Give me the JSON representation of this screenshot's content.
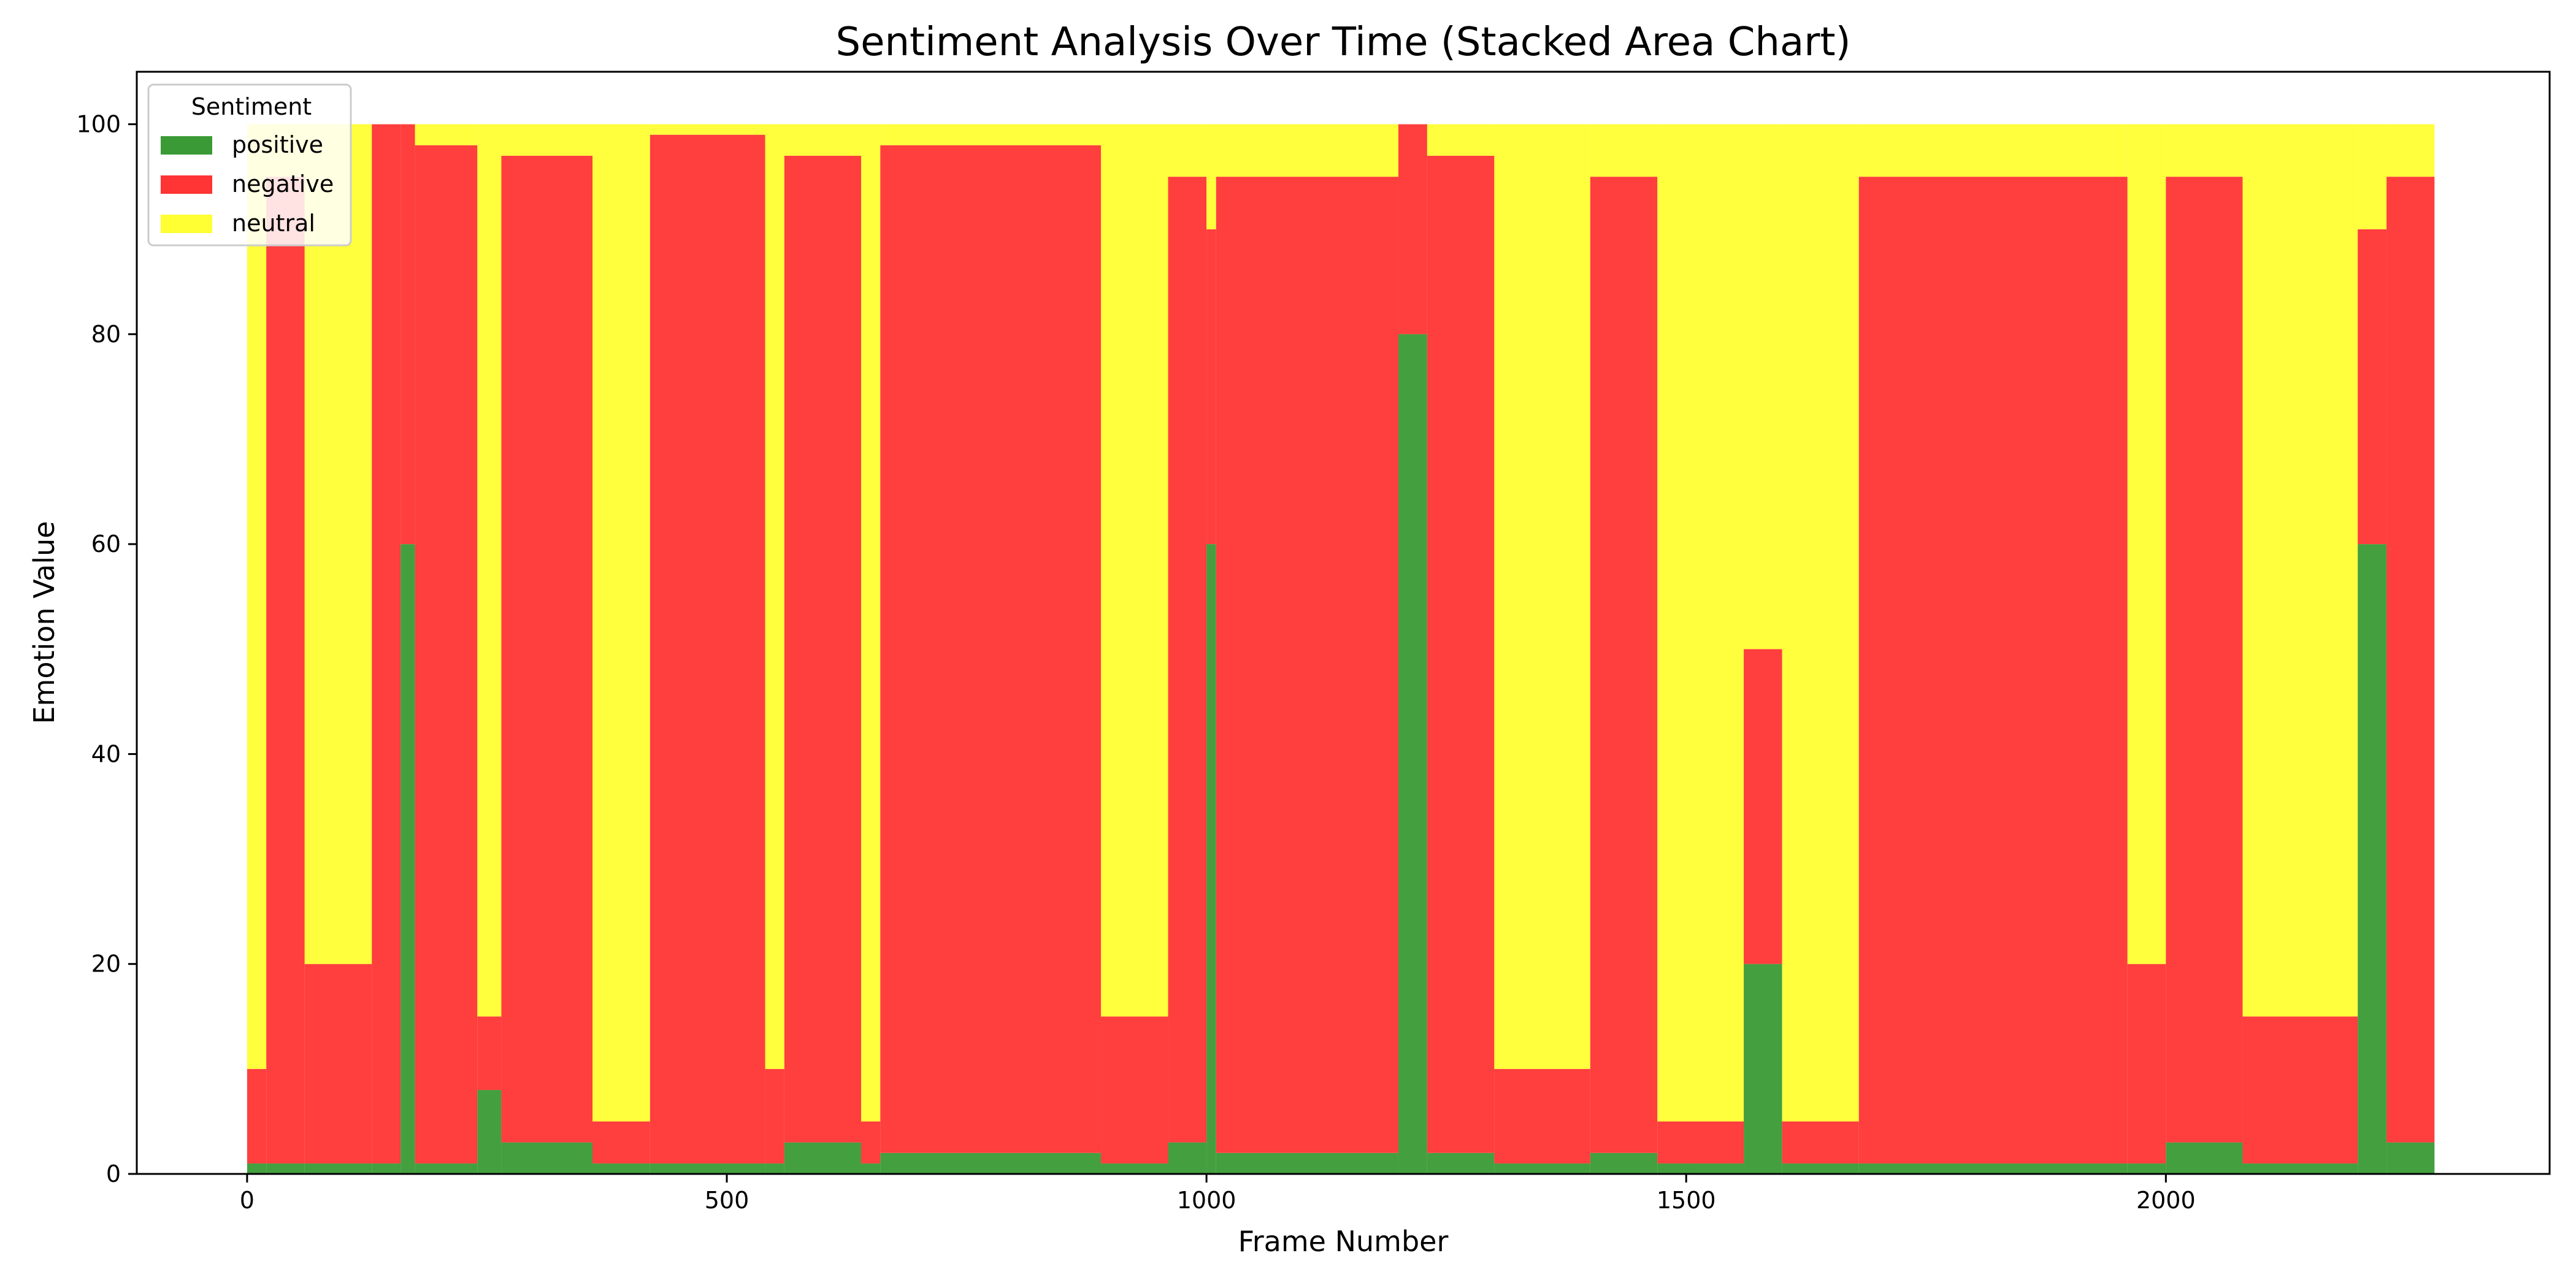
{
  "chart_data": {
    "type": "area",
    "stacked": true,
    "title": "Sentiment Analysis Over Time (Stacked Area Chart)",
    "xlabel": "Frame Number",
    "ylabel": "Emotion Value",
    "xlim": [
      -115,
      2400
    ],
    "ylim": [
      0,
      105
    ],
    "xticks": [
      0,
      500,
      1000,
      1500,
      2000
    ],
    "yticks": [
      0,
      20,
      40,
      60,
      80,
      100
    ],
    "grid": false,
    "legend": {
      "title": "Sentiment",
      "placement": "top-left"
    },
    "colors": {
      "positive": "#3a9a35",
      "negative": "#ff3434",
      "neutral": "#ffff33"
    },
    "segments": [
      {
        "from": 0,
        "to": 20,
        "positive": 1,
        "negative": 9,
        "neutral": 90
      },
      {
        "from": 20,
        "to": 60,
        "positive": 1,
        "negative": 94,
        "neutral": 5
      },
      {
        "from": 60,
        "to": 130,
        "positive": 1,
        "negative": 19,
        "neutral": 80
      },
      {
        "from": 130,
        "to": 160,
        "positive": 1,
        "negative": 99,
        "neutral": 0
      },
      {
        "from": 160,
        "to": 175,
        "positive": 60,
        "negative": 40,
        "neutral": 0
      },
      {
        "from": 175,
        "to": 240,
        "positive": 1,
        "negative": 97,
        "neutral": 2
      },
      {
        "from": 240,
        "to": 265,
        "positive": 8,
        "negative": 7,
        "neutral": 85
      },
      {
        "from": 265,
        "to": 360,
        "positive": 3,
        "negative": 94,
        "neutral": 3
      },
      {
        "from": 360,
        "to": 420,
        "positive": 1,
        "negative": 4,
        "neutral": 95
      },
      {
        "from": 420,
        "to": 540,
        "positive": 1,
        "negative": 98,
        "neutral": 1
      },
      {
        "from": 540,
        "to": 560,
        "positive": 1,
        "negative": 9,
        "neutral": 90
      },
      {
        "from": 560,
        "to": 640,
        "positive": 3,
        "negative": 94,
        "neutral": 3
      },
      {
        "from": 640,
        "to": 660,
        "positive": 1,
        "negative": 4,
        "neutral": 95
      },
      {
        "from": 660,
        "to": 890,
        "positive": 2,
        "negative": 96,
        "neutral": 2
      },
      {
        "from": 890,
        "to": 960,
        "positive": 1,
        "negative": 14,
        "neutral": 85
      },
      {
        "from": 960,
        "to": 1000,
        "positive": 3,
        "negative": 92,
        "neutral": 5
      },
      {
        "from": 1000,
        "to": 1010,
        "positive": 60,
        "negative": 30,
        "neutral": 10
      },
      {
        "from": 1010,
        "to": 1200,
        "positive": 2,
        "negative": 93,
        "neutral": 5
      },
      {
        "from": 1200,
        "to": 1230,
        "positive": 80,
        "negative": 20,
        "neutral": 0
      },
      {
        "from": 1230,
        "to": 1300,
        "positive": 2,
        "negative": 95,
        "neutral": 3
      },
      {
        "from": 1300,
        "to": 1400,
        "positive": 1,
        "negative": 9,
        "neutral": 90
      },
      {
        "from": 1400,
        "to": 1470,
        "positive": 2,
        "negative": 93,
        "neutral": 5
      },
      {
        "from": 1470,
        "to": 1560,
        "positive": 1,
        "negative": 4,
        "neutral": 95
      },
      {
        "from": 1560,
        "to": 1600,
        "positive": 20,
        "negative": 30,
        "neutral": 50
      },
      {
        "from": 1600,
        "to": 1680,
        "positive": 1,
        "negative": 4,
        "neutral": 95
      },
      {
        "from": 1680,
        "to": 1960,
        "positive": 1,
        "negative": 94,
        "neutral": 5
      },
      {
        "from": 1960,
        "to": 2000,
        "positive": 1,
        "negative": 19,
        "neutral": 80
      },
      {
        "from": 2000,
        "to": 2080,
        "positive": 3,
        "negative": 92,
        "neutral": 5
      },
      {
        "from": 2080,
        "to": 2200,
        "positive": 1,
        "negative": 14,
        "neutral": 85
      },
      {
        "from": 2200,
        "to": 2230,
        "positive": 60,
        "negative": 30,
        "neutral": 10
      },
      {
        "from": 2230,
        "to": 2280,
        "positive": 3,
        "negative": 92,
        "neutral": 5
      }
    ],
    "series": [
      {
        "name": "positive"
      },
      {
        "name": "negative"
      },
      {
        "name": "neutral"
      }
    ]
  }
}
